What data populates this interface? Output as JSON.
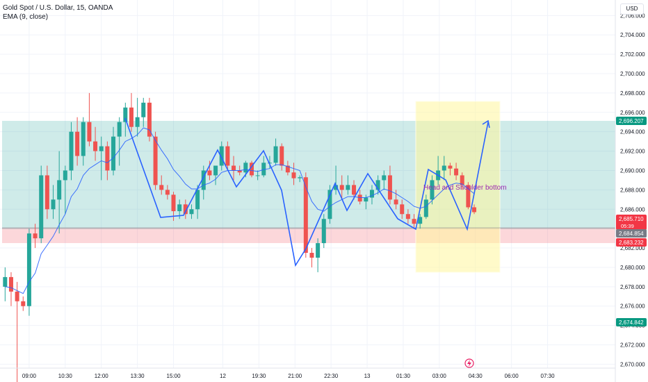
{
  "header": {
    "title": "Gold Spot / U.S. Dollar, 15, OANDA",
    "indicator": "EMA (9, close)",
    "currency": "USD"
  },
  "annotation_label": "Head and Shoulder bottom",
  "price_tags": {
    "last_price": "2,685.710",
    "countdown": "05:39",
    "upper_level": "2,696.207",
    "mid_level": "2,684.854",
    "lower_level": "2,683.232",
    "bottom_level": "2,674.842"
  },
  "colors": {
    "up": "#26a69a",
    "down": "#ef5350",
    "ema": "#2962ff",
    "pattern_line": "#2962ff",
    "green_zone": "#b2dfdb",
    "red_zone": "#ffcdd2",
    "yellow_zone": "#fff9c4",
    "annotation_text": "#9c27b0"
  },
  "chart_data": {
    "type": "candlestick",
    "ylim": [
      2669.6,
      2707.6
    ],
    "yticks": [
      "2,670.000",
      "2,672.000",
      "2,674.000",
      "2,676.000",
      "2,678.000",
      "2,680.000",
      "2,682.000",
      "2,684.000",
      "2,686.000",
      "2,688.000",
      "2,690.000",
      "2,692.000",
      "2,694.000",
      "2,696.000",
      "2,698.000",
      "2,700.000",
      "2,702.000",
      "2,704.000",
      "2,706.000"
    ],
    "yticks_values": [
      2670,
      2672,
      2674,
      2676,
      2678,
      2680,
      2682,
      2684,
      2686,
      2688,
      2690,
      2692,
      2694,
      2696,
      2698,
      2700,
      2702,
      2704,
      2706
    ],
    "xticks": [
      {
        "label": "09:00",
        "index": 4.5
      },
      {
        "label": "10:30",
        "index": 10.5
      },
      {
        "label": "12:00",
        "index": 16.5
      },
      {
        "label": "13:30",
        "index": 22.5
      },
      {
        "label": "15:00",
        "index": 28.5
      },
      {
        "label": "12",
        "index": 36.7
      },
      {
        "label": "19:30",
        "index": 42.7
      },
      {
        "label": "21:00",
        "index": 48.7
      },
      {
        "label": "22:30",
        "index": 54.7
      },
      {
        "label": "13",
        "index": 60.7
      },
      {
        "label": "01:30",
        "index": 66.7
      },
      {
        "label": "03:00",
        "index": 72.7
      },
      {
        "label": "04:30",
        "index": 78.7
      },
      {
        "label": "06:00",
        "index": 84.7
      },
      {
        "label": "07:30",
        "index": 90.7
      }
    ],
    "candles": [
      [
        2678.0,
        2680.0,
        2676.5,
        2679.0
      ],
      [
        2679.0,
        2679.5,
        2676.0,
        2677.5
      ],
      [
        2677.5,
        2678.5,
        2667.0,
        2676.5
      ],
      [
        2676.5,
        2677.0,
        2675.5,
        2676.0
      ],
      [
        2676.0,
        2684.0,
        2675.0,
        2683.5
      ],
      [
        2683.5,
        2684.5,
        2682.0,
        2683.0
      ],
      [
        2683.0,
        2690.5,
        2682.5,
        2689.5
      ],
      [
        2689.5,
        2690.5,
        2685.0,
        2686.0
      ],
      [
        2686.0,
        2688.5,
        2685.0,
        2687.0
      ],
      [
        2687.0,
        2692.0,
        2683.5,
        2689.0
      ],
      [
        2689.0,
        2690.5,
        2685.5,
        2690.0
      ],
      [
        2690.0,
        2695.0,
        2689.0,
        2694.0
      ],
      [
        2694.0,
        2695.5,
        2690.5,
        2691.5
      ],
      [
        2691.5,
        2695.5,
        2690.5,
        2695.0
      ],
      [
        2695.0,
        2698.0,
        2692.5,
        2693.0
      ],
      [
        2693.0,
        2694.5,
        2691.0,
        2692.0
      ],
      [
        2692.0,
        2693.5,
        2689.0,
        2692.5
      ],
      [
        2692.5,
        2693.0,
        2689.0,
        2690.0
      ],
      [
        2690.0,
        2694.5,
        2689.5,
        2693.5
      ],
      [
        2693.5,
        2695.5,
        2690.5,
        2695.0
      ],
      [
        2695.0,
        2697.0,
        2693.5,
        2696.5
      ],
      [
        2696.5,
        2698.0,
        2694.0,
        2694.5
      ],
      [
        2694.5,
        2697.5,
        2693.5,
        2695.5
      ],
      [
        2695.5,
        2697.5,
        2694.5,
        2697.0
      ],
      [
        2697.0,
        2697.5,
        2693.0,
        2693.5
      ],
      [
        2693.5,
        2694.0,
        2688.0,
        2688.5
      ],
      [
        2688.5,
        2689.5,
        2687.5,
        2688.0
      ],
      [
        2688.0,
        2688.5,
        2687.0,
        2687.5
      ],
      [
        2687.5,
        2687.8,
        2684.8,
        2685.8
      ],
      [
        2685.8,
        2687.0,
        2685.0,
        2686.5
      ],
      [
        2686.5,
        2687.0,
        2685.0,
        2685.5
      ],
      [
        2685.5,
        2686.5,
        2685.0,
        2686.0
      ],
      [
        2686.0,
        2688.5,
        2685.0,
        2688.0
      ],
      [
        2688.0,
        2690.5,
        2687.0,
        2690.0
      ],
      [
        2690.0,
        2691.0,
        2689.0,
        2689.5
      ],
      [
        2689.5,
        2690.5,
        2688.5,
        2690.5
      ],
      [
        2690.5,
        2693.0,
        2690.0,
        2692.5
      ],
      [
        2692.5,
        2693.0,
        2690.0,
        2690.5
      ],
      [
        2690.5,
        2691.5,
        2689.0,
        2690.0
      ],
      [
        2690.0,
        2690.5,
        2689.5,
        2689.8
      ],
      [
        2689.8,
        2691.0,
        2689.3,
        2690.8
      ],
      [
        2690.8,
        2691.0,
        2689.3,
        2689.5
      ],
      [
        2689.5,
        2690.0,
        2689.0,
        2689.5
      ],
      [
        2689.5,
        2691.5,
        2689.3,
        2690.8
      ],
      [
        2690.8,
        2691.5,
        2690.2,
        2690.8
      ],
      [
        2690.8,
        2693.3,
        2690.5,
        2692.5
      ],
      [
        2692.5,
        2692.8,
        2690.0,
        2690.5
      ],
      [
        2690.5,
        2691.0,
        2689.5,
        2689.8
      ],
      [
        2689.8,
        2690.8,
        2688.5,
        2689.2
      ],
      [
        2689.2,
        2689.5,
        2688.8,
        2689.3
      ],
      [
        2689.3,
        2689.8,
        2681.0,
        2681.5
      ],
      [
        2681.5,
        2682.0,
        2680.0,
        2681.0
      ],
      [
        2681.0,
        2683.0,
        2679.5,
        2682.5
      ],
      [
        2682.5,
        2685.5,
        2682.0,
        2685.0
      ],
      [
        2685.0,
        2688.5,
        2684.5,
        2688.0
      ],
      [
        2688.0,
        2690.5,
        2687.5,
        2688.5
      ],
      [
        2688.5,
        2689.5,
        2687.0,
        2688.0
      ],
      [
        2688.0,
        2689.5,
        2687.5,
        2688.5
      ],
      [
        2688.5,
        2689.0,
        2687.0,
        2687.5
      ],
      [
        2687.5,
        2688.0,
        2686.5,
        2686.8
      ],
      [
        2686.8,
        2687.5,
        2686.0,
        2687.2
      ],
      [
        2687.2,
        2688.5,
        2686.5,
        2688.0
      ],
      [
        2688.0,
        2689.5,
        2687.5,
        2689.0
      ],
      [
        2689.0,
        2690.0,
        2688.0,
        2689.5
      ],
      [
        2689.5,
        2690.5,
        2686.5,
        2687.0
      ],
      [
        2687.0,
        2688.0,
        2686.0,
        2686.5
      ],
      [
        2686.5,
        2687.0,
        2685.0,
        2685.5
      ],
      [
        2685.5,
        2686.0,
        2684.5,
        2685.0
      ],
      [
        2685.0,
        2685.5,
        2684.0,
        2684.5
      ],
      [
        2684.5,
        2685.5,
        2684.0,
        2685.2
      ],
      [
        2685.2,
        2687.5,
        2685.0,
        2687.0
      ],
      [
        2687.0,
        2689.5,
        2686.5,
        2689.0
      ],
      [
        2689.0,
        2691.5,
        2688.5,
        2690.0
      ],
      [
        2690.0,
        2691.5,
        2689.0,
        2690.5
      ],
      [
        2690.5,
        2690.8,
        2689.5,
        2690.2
      ],
      [
        2690.2,
        2690.8,
        2689.0,
        2689.5
      ],
      [
        2689.5,
        2689.8,
        2688.0,
        2688.5
      ],
      [
        2688.5,
        2688.8,
        2686.0,
        2686.2
      ],
      [
        2686.2,
        2686.5,
        2685.5,
        2685.7
      ]
    ],
    "ema": [
      2678.0,
      2677.9,
      2677.6,
      2677.3,
      2678.5,
      2679.4,
      2681.4,
      2682.3,
      2683.2,
      2684.4,
      2685.5,
      2687.3,
      2688.1,
      2689.5,
      2690.2,
      2690.6,
      2691.0,
      2690.8,
      2691.3,
      2692.1,
      2693.0,
      2693.3,
      2693.7,
      2694.4,
      2694.2,
      2693.1,
      2692.1,
      2691.2,
      2690.1,
      2689.4,
      2688.6,
      2688.1,
      2688.1,
      2688.5,
      2688.7,
      2689.1,
      2689.8,
      2690.0,
      2690.0,
      2690.0,
      2690.1,
      2690.0,
      2689.9,
      2690.1,
      2690.2,
      2690.6,
      2690.6,
      2690.4,
      2690.2,
      2690.0,
      2688.3,
      2686.8,
      2686.0,
      2685.8,
      2686.3,
      2686.7,
      2687.0,
      2687.3,
      2687.3,
      2687.2,
      2687.2,
      2687.4,
      2687.7,
      2688.1,
      2687.9,
      2687.6,
      2687.2,
      2686.8,
      2686.3,
      2686.1,
      2686.3,
      2686.9,
      2687.5,
      2688.1,
      2688.5,
      2688.7,
      2688.6,
      2688.1,
      2687.6
    ]
  }
}
